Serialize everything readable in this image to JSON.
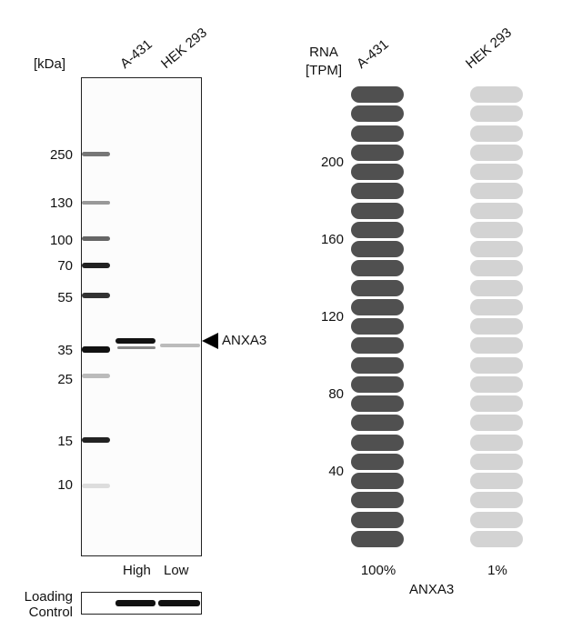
{
  "blot": {
    "unit_label": "[kDa]",
    "lanes": [
      "A-431",
      "HEK 293"
    ],
    "markers": [
      "250",
      "130",
      "100",
      "70",
      "55",
      "35",
      "25",
      "15",
      "10"
    ],
    "target_label": "ANXA3",
    "lane_levels": [
      "High",
      "Low"
    ],
    "loading_control": "Loading\nControl"
  },
  "chart_data": {
    "type": "bar",
    "title": "ANXA3",
    "ylabel": "RNA\n[TPM]",
    "categories": [
      "A-431",
      "HEK 293"
    ],
    "values": [
      240,
      2
    ],
    "percent_labels": [
      "100%",
      "1%"
    ],
    "yticks": [
      "40",
      "80",
      "120",
      "160",
      "200"
    ],
    "ylim": [
      0,
      240
    ],
    "pill_step": 10,
    "colors": {
      "filled": "#505050",
      "empty": "#d3d3d3"
    }
  }
}
